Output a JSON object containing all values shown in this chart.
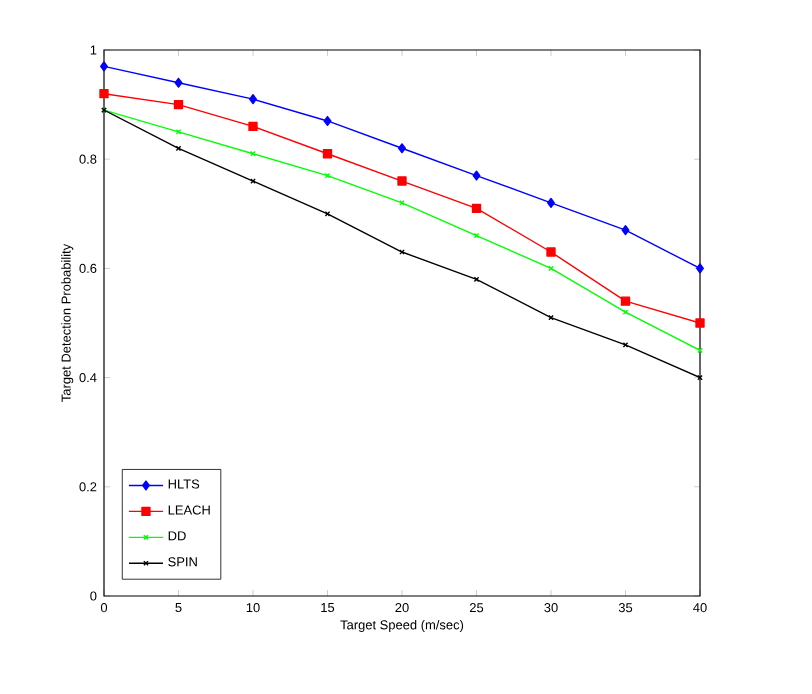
{
  "chart_data": {
    "type": "line",
    "xlabel": "Target Speed (m/sec)",
    "ylabel": "Target Detection Probability",
    "x": [
      0,
      5,
      10,
      15,
      20,
      25,
      30,
      35,
      40
    ],
    "series": [
      {
        "name": "HLTS",
        "color": "#0000ff",
        "marker": "diamond",
        "values": [
          0.97,
          0.94,
          0.91,
          0.87,
          0.82,
          0.77,
          0.72,
          0.67,
          0.6
        ]
      },
      {
        "name": "LEACH",
        "color": "#ff0000",
        "marker": "square",
        "values": [
          0.92,
          0.9,
          0.86,
          0.81,
          0.76,
          0.71,
          0.63,
          0.54,
          0.5
        ]
      },
      {
        "name": "DD",
        "color": "#00ff00",
        "marker": "cross",
        "values": [
          0.89,
          0.85,
          0.81,
          0.77,
          0.72,
          0.66,
          0.6,
          0.52,
          0.45
        ]
      },
      {
        "name": "SPIN",
        "color": "#000000",
        "marker": "cross",
        "values": [
          0.89,
          0.82,
          0.76,
          0.7,
          0.63,
          0.58,
          0.51,
          0.46,
          0.4
        ]
      }
    ],
    "xlim": [
      0,
      40
    ],
    "ylim": [
      0,
      1
    ],
    "xticks": [
      0,
      5,
      10,
      15,
      20,
      25,
      30,
      35,
      40
    ],
    "yticks": [
      0,
      0.2,
      0.4,
      0.6,
      0.8,
      1
    ],
    "legend": "bottom left",
    "grid": false
  }
}
